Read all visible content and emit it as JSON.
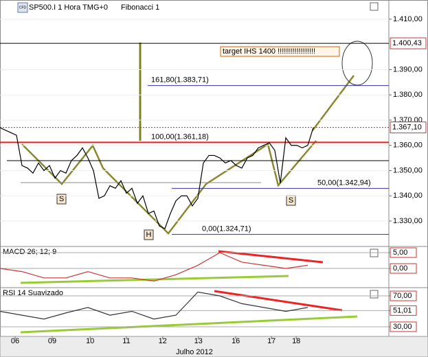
{
  "header": {
    "icon": "CFD",
    "symbol": "SP500.I 1 Hora TMG+0",
    "study": "Fibonacci 1"
  },
  "chart_data": [
    {
      "type": "line",
      "color": "#000000",
      "x": [
        0,
        1,
        2,
        3,
        4,
        5,
        6,
        7,
        8,
        9,
        10,
        11,
        12,
        13,
        14,
        15,
        16,
        17,
        18,
        19,
        20,
        21,
        22,
        23,
        24,
        25,
        26,
        27,
        28,
        29,
        30,
        31,
        32,
        33,
        34,
        35,
        36,
        37,
        38,
        39,
        40,
        41,
        42,
        43,
        44,
        45,
        46,
        47,
        48,
        49,
        50,
        51,
        52,
        53,
        54,
        55,
        56,
        57
      ],
      "values": [
        1367,
        1366,
        1365,
        1364,
        1352,
        1351,
        1349,
        1353,
        1350,
        1352,
        1347,
        1350,
        1349,
        1354,
        1356,
        1359,
        1355,
        1350,
        1339,
        1340,
        1344,
        1343,
        1346,
        1341,
        1343,
        1337,
        1340,
        1333,
        1334,
        1328,
        1327,
        1333,
        1338,
        1340,
        1340,
        1336,
        1339,
        1353,
        1356,
        1356,
        1355,
        1353,
        1354,
        1352,
        1351,
        1355,
        1356,
        1359,
        1360,
        1361,
        1358,
        1345,
        1363,
        1360,
        1360,
        1359,
        1360,
        1367
      ],
      "xlim": [
        0,
        70.75
      ],
      "ylim": [
        1320.2,
        1417.6
      ],
      "yticks": [
        {
          "value": 1410,
          "label": "1.410,00"
        },
        {
          "value": 1390,
          "label": "1.390,00"
        },
        {
          "value": 1380,
          "label": "1.380,00"
        },
        {
          "value": 1370,
          "label": "1.370,00"
        },
        {
          "value": 1360,
          "label": "1.360,00"
        },
        {
          "value": 1350,
          "label": "1.350,00"
        },
        {
          "value": 1340,
          "label": "1.340,00"
        },
        {
          "value": 1330,
          "label": "1.330,00"
        }
      ],
      "fibonacci": [
        {
          "value": 1383.71,
          "label": "161,80(1.383,71)"
        },
        {
          "value": 1361.18,
          "label": "100,00(1.361,18)"
        },
        {
          "value": 1342.94,
          "label": "50,00(1.342,94)"
        },
        {
          "value": 1324.71,
          "label": "0,00(1.324,71)"
        }
      ],
      "price_labels": [
        {
          "value": 1400.43,
          "label": "1.400,43"
        },
        {
          "value": 1367.1,
          "label": "1.367,10"
        }
      ],
      "annotations": [
        "target IHS 1400 !!!!!!!!!!!!!!!!!!",
        "S",
        "H",
        "S"
      ]
    },
    {
      "type": "line",
      "title": "MACD 26; 12; 9",
      "color": "#cc3333",
      "x": [
        0,
        4,
        8,
        12,
        16,
        20,
        24,
        28,
        32,
        36,
        40,
        44,
        48,
        52,
        56
      ],
      "values": [
        0,
        -1,
        -3,
        -3,
        -1,
        -3,
        -3,
        -4,
        -2,
        1,
        5,
        2,
        1,
        0,
        1
      ],
      "xlim": [
        0,
        70.75
      ],
      "ylim": [
        -5.87,
        6.74
      ],
      "yticks": [
        {
          "value": 5,
          "label": "5,00"
        },
        {
          "value": 0,
          "label": "0,00"
        }
      ]
    },
    {
      "type": "line",
      "title": "RSI 14 Suavizado",
      "color": "#333333",
      "x": [
        0,
        4,
        8,
        12,
        16,
        20,
        24,
        28,
        32,
        36,
        40,
        44,
        48,
        52,
        56
      ],
      "values": [
        50,
        45,
        40,
        48,
        55,
        45,
        50,
        40,
        45,
        75,
        70,
        60,
        55,
        50,
        55
      ],
      "xlim": [
        0,
        70.75
      ],
      "ylim": [
        19.3,
        79.8
      ],
      "yticks": [
        {
          "value": 70,
          "label": "70,00"
        },
        {
          "value": 51.01,
          "label": "51,01"
        },
        {
          "value": 30,
          "label": "30,00"
        }
      ],
      "xticks": [
        {
          "value": 2.75,
          "label": "06"
        },
        {
          "value": 9.5,
          "label": "09"
        },
        {
          "value": 16.4,
          "label": "10"
        },
        {
          "value": 23,
          "label": "11"
        },
        {
          "value": 29.6,
          "label": "12"
        },
        {
          "value": 36.1,
          "label": "13"
        },
        {
          "value": 42.9,
          "label": "16"
        },
        {
          "value": 49.4,
          "label": "17"
        },
        {
          "value": 53.9,
          "label": "18"
        }
      ],
      "xlabel": "Julho 2012"
    }
  ]
}
